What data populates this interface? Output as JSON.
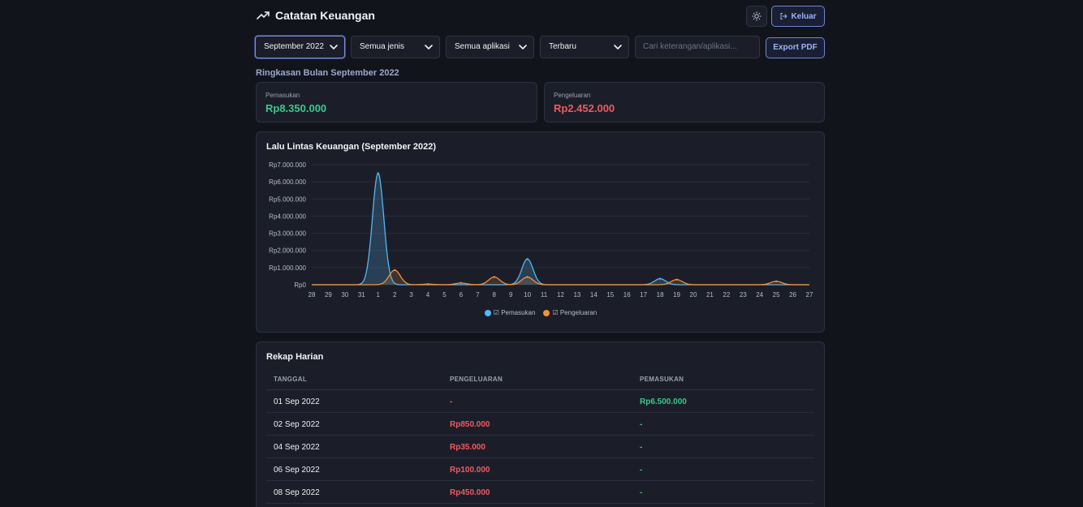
{
  "header": {
    "title": "Catatan Keuangan",
    "logout_label": "Keluar"
  },
  "filters": {
    "month": "September 2022",
    "type": "Semua jenis",
    "app": "Semua aplikasi",
    "sort": "Terbaru",
    "search_placeholder": "Cari keterangan/aplikasi...",
    "export_label": "Export PDF"
  },
  "summary": {
    "title": "Ringkasan Bulan September 2022",
    "income_label": "Pemasukan",
    "income_value": "Rp8.350.000",
    "expense_label": "Pengeluaran",
    "expense_value": "Rp2.452.000"
  },
  "colors": {
    "income": "#56b6f0",
    "expense": "#f0923a",
    "green_text": "#38c98a",
    "red_text": "#f05a5f"
  },
  "chart_data": {
    "type": "area",
    "title": "Lalu Lintas Keuangan (September 2022)",
    "x": [
      "28",
      "29",
      "30",
      "31",
      "1",
      "2",
      "3",
      "4",
      "5",
      "6",
      "7",
      "8",
      "9",
      "10",
      "11",
      "12",
      "13",
      "14",
      "15",
      "16",
      "17",
      "18",
      "19",
      "20",
      "21",
      "22",
      "23",
      "24",
      "25",
      "26",
      "27"
    ],
    "ylim": [
      0,
      7000000
    ],
    "y_ticks": [
      "Rp0",
      "Rp1.000.000",
      "Rp2.000.000",
      "Rp3.000.000",
      "Rp4.000.000",
      "Rp5.000.000",
      "Rp6.000.000",
      "Rp7.000.000"
    ],
    "grid": true,
    "legend_position": "bottom",
    "series": [
      {
        "name": "☑ Pemasukan",
        "values": [
          0,
          0,
          0,
          0,
          6500000,
          0,
          0,
          0,
          0,
          0,
          0,
          0,
          0,
          1500000,
          0,
          0,
          0,
          0,
          0,
          0,
          0,
          350000,
          0,
          0,
          0,
          0,
          0,
          0,
          0,
          0,
          0
        ]
      },
      {
        "name": "☑ Pengeluaran",
        "values": [
          0,
          0,
          0,
          0,
          0,
          850000,
          0,
          35000,
          0,
          100000,
          0,
          450000,
          0,
          450000,
          0,
          0,
          0,
          0,
          0,
          0,
          0,
          0,
          300000,
          0,
          0,
          0,
          0,
          0,
          200000,
          0,
          0
        ]
      }
    ]
  },
  "table": {
    "title": "Rekap Harian",
    "headers": [
      "TANGGAL",
      "PENGELUARAN",
      "PEMASUKAN"
    ],
    "rows": [
      {
        "date": "01 Sep 2022",
        "out": "-",
        "in": "Rp6.500.000"
      },
      {
        "date": "02 Sep 2022",
        "out": "Rp850.000",
        "in": "-"
      },
      {
        "date": "04 Sep 2022",
        "out": "Rp35.000",
        "in": "-"
      },
      {
        "date": "06 Sep 2022",
        "out": "Rp100.000",
        "in": "-"
      },
      {
        "date": "08 Sep 2022",
        "out": "Rp450.000",
        "in": "-"
      }
    ]
  }
}
